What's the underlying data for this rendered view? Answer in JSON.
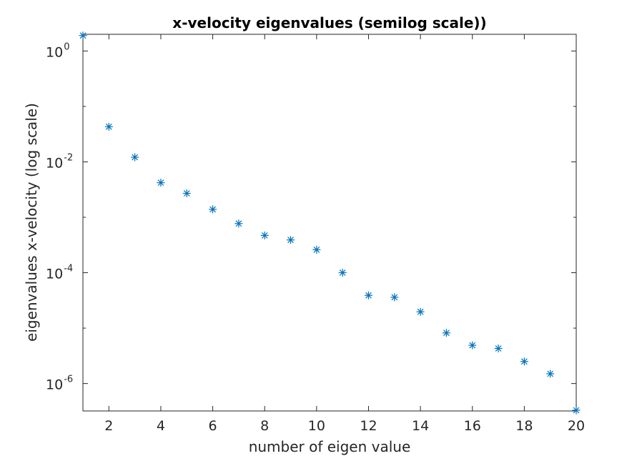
{
  "chart_data": {
    "type": "scatter",
    "title": "x-velocity eigenvalues (semilog scale))",
    "xlabel": "number of eigen value",
    "ylabel": "eigenvalues x-velocity (log scale)",
    "y_scale": "log",
    "xlim": [
      1,
      20
    ],
    "ylim": [
      3.2e-07,
      2.0
    ],
    "x_ticks": [
      2,
      4,
      6,
      8,
      10,
      12,
      14,
      16,
      18,
      20
    ],
    "y_ticks": [
      {
        "base": "10",
        "exponent": "0",
        "value": 1
      },
      {
        "base": "10",
        "exponent": "-2",
        "value": 0.01
      },
      {
        "base": "10",
        "exponent": "-4",
        "value": 0.0001
      },
      {
        "base": "10",
        "exponent": "-6",
        "value": 1e-06
      }
    ],
    "grid": false,
    "marker": "asterisk",
    "series_color": "#0072BD",
    "x": [
      1,
      2,
      3,
      4,
      5,
      6,
      7,
      8,
      9,
      10,
      11,
      12,
      13,
      14,
      15,
      16,
      17,
      18,
      19,
      20
    ],
    "y": [
      1.9,
      0.043,
      0.0121,
      0.0042,
      0.0027,
      0.00139,
      0.00077,
      0.00047,
      0.00039,
      0.00026,
      0.0001,
      3.9e-05,
      3.6e-05,
      1.97e-05,
      8.2e-06,
      4.9e-06,
      4.3e-06,
      2.5e-06,
      1.5e-06,
      3.3e-07
    ]
  }
}
